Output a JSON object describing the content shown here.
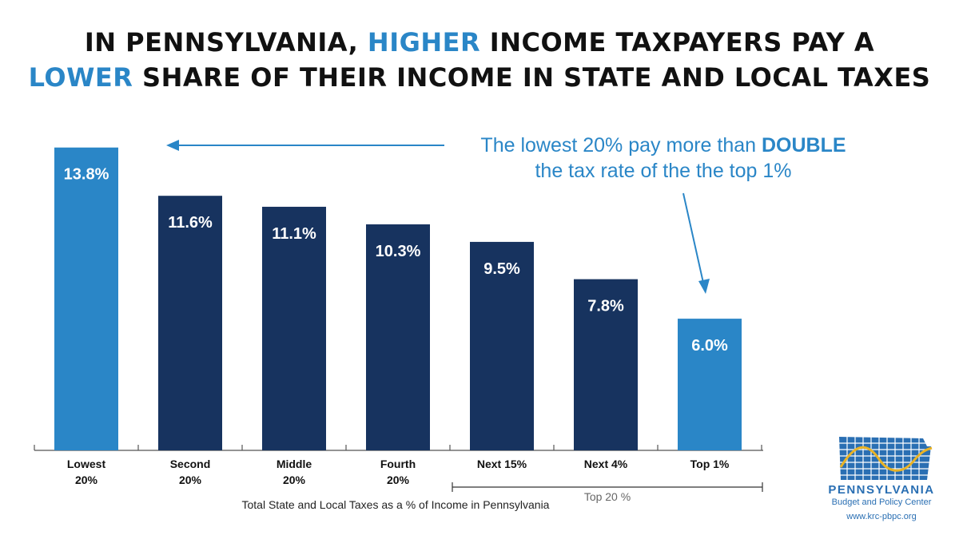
{
  "title": {
    "line1": {
      "a": "IN PENNSYLVANIA, ",
      "highlight": "HIGHER",
      "b": " INCOME TAXPAYERS PAY A"
    },
    "line2": {
      "highlight": "LOWER",
      "b": " SHARE OF THEIR INCOME IN STATE AND LOCAL TAXES"
    }
  },
  "annotation": {
    "line1_a": "The lowest 20% pay more than ",
    "line1_bold": "DOUBLE",
    "line2": "the tax rate of the the top 1%"
  },
  "colors": {
    "dark_bar": "#17335f",
    "highlight_bar": "#2a86c7",
    "accent": "#2a86c7",
    "logo_blue": "#2a6fb3",
    "logo_gold": "#e9b326"
  },
  "chart_data": {
    "type": "bar",
    "categories": [
      [
        "Lowest",
        "20%"
      ],
      [
        "Second",
        "20%"
      ],
      [
        "Middle",
        "20%"
      ],
      [
        "Fourth",
        "20%"
      ],
      [
        "Next 15%"
      ],
      [
        "Next 4%"
      ],
      [
        "Top 1%"
      ]
    ],
    "values": [
      13.8,
      11.6,
      11.1,
      10.3,
      9.5,
      7.8,
      6.0
    ],
    "value_labels": [
      "13.8%",
      "11.6%",
      "11.1%",
      "10.3%",
      "9.5%",
      "7.8%",
      "6.0%"
    ],
    "highlighted": [
      true,
      false,
      false,
      false,
      false,
      false,
      true
    ],
    "xlabel": "Total State and Local Taxes as a % of Income in Pennsylvania",
    "ylabel": "",
    "ylim": [
      0,
      14.3
    ],
    "grid": false,
    "group_bracket": {
      "label": "Top 20 %",
      "from": "Next 15%",
      "to": "Top 1%"
    }
  },
  "logo": {
    "name": "PENNSYLVANIA",
    "subtitle": "Budget and Policy Center",
    "url": "www.krc-pbpc.org",
    "icon": "pennsylvania-map-icon"
  }
}
